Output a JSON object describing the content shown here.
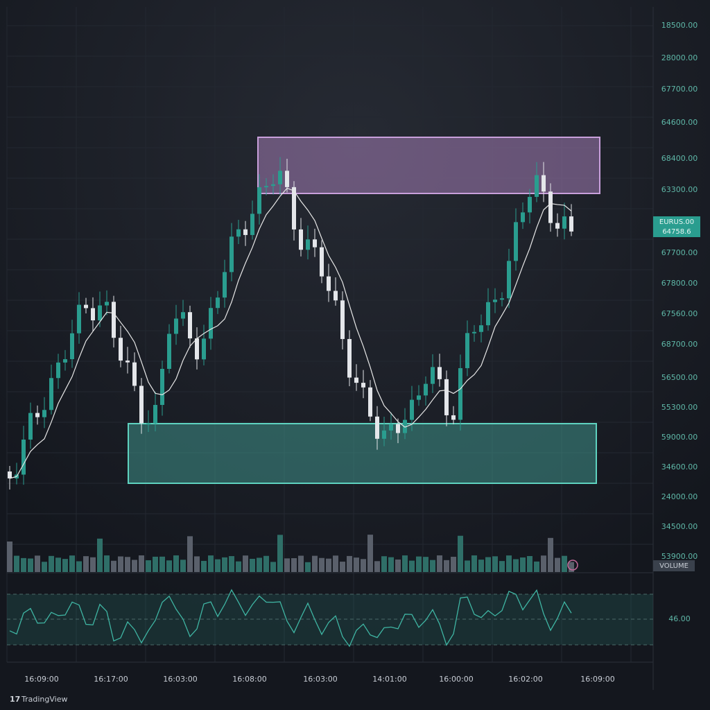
{
  "price_axis": [
    "18500.00",
    "28000.00",
    "67700.00",
    "64600.00",
    "68400.00",
    "63300.00",
    "67700.00",
    "67800.00",
    "67560.00",
    "68700.00",
    "56500.00",
    "55300.00",
    "59000.00",
    "34600.00",
    "24000.00",
    "34500.00",
    "53900.00"
  ],
  "badges": {
    "symbol": "EURUS.00",
    "price": "64758.6",
    "volume": "VOLUME"
  },
  "oscillator_level": "46.00",
  "time_axis": [
    "16:09:00",
    "16:17:00",
    "16:03:00",
    "16:08:00",
    "16:03:00",
    "14:01:00",
    "16:00:00",
    "16:02:00",
    "16:09:00"
  ],
  "brand": "TradingView"
}
